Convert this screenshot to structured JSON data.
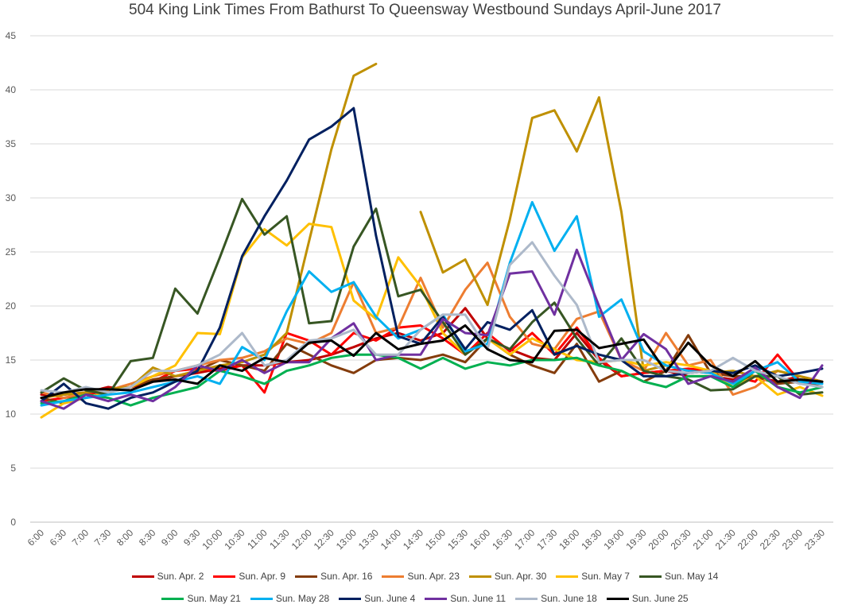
{
  "chart_data": {
    "type": "line",
    "title": "504 King Link Times From Bathurst To Queensway Westbound Sundays April-June 2017",
    "xlabel": "",
    "ylabel": "",
    "ylim": [
      0,
      45
    ],
    "yticks": [
      "0",
      "5",
      "10",
      "15",
      "20",
      "25",
      "30",
      "35",
      "40",
      "45"
    ],
    "grid": "horizontal",
    "legend_position": "bottom",
    "categories": [
      "6:00",
      "6:30",
      "7:00",
      "7:30",
      "8:00",
      "8:30",
      "9:00",
      "9:30",
      "10:00",
      "10:30",
      "11:00",
      "11:30",
      "12:00",
      "12:30",
      "13:00",
      "13:30",
      "14:00",
      "14:30",
      "15:00",
      "15:30",
      "16:00",
      "16:30",
      "17:00",
      "17:30",
      "18:00",
      "18:30",
      "19:00",
      "19:30",
      "20:00",
      "20:30",
      "21:00",
      "21:30",
      "22:00",
      "22:30",
      "23:00",
      "23:30"
    ],
    "series": [
      {
        "name": "Sun. Apr. 2",
        "color": "#c00000",
        "values": [
          11.8,
          11.8,
          12.0,
          12.5,
          12.2,
          13.0,
          13.5,
          13.8,
          14.2,
          14.5,
          14.5,
          14.8,
          15.0,
          15.5,
          16.2,
          17.0,
          17.5,
          16.8,
          17.5,
          19.8,
          17.0,
          16.0,
          15.2,
          15.0,
          17.5,
          15.0,
          13.5,
          13.8,
          14.0,
          13.5,
          13.5,
          13.2,
          13.5,
          13.0,
          13.5,
          13.0
        ]
      },
      {
        "name": "Sun. Apr. 9",
        "color": "#ff0000",
        "values": [
          11.2,
          11.5,
          11.8,
          12.2,
          12.5,
          13.0,
          14.0,
          14.2,
          14.0,
          14.5,
          12.0,
          17.5,
          16.8,
          15.5,
          17.5,
          16.8,
          18.0,
          18.2,
          17.0,
          15.5,
          17.5,
          15.8,
          17.5,
          15.5,
          18.0,
          15.2,
          13.5,
          13.8,
          14.0,
          14.2,
          14.0,
          13.5,
          13.0,
          15.5,
          13.0,
          13.0
        ]
      },
      {
        "name": "Sun. Apr. 16",
        "color": "#843c0c",
        "values": [
          11.5,
          11.0,
          11.5,
          12.0,
          12.5,
          13.2,
          13.5,
          14.0,
          15.0,
          14.5,
          14.0,
          16.5,
          15.5,
          14.5,
          13.8,
          15.0,
          15.2,
          15.0,
          15.5,
          14.8,
          17.0,
          15.5,
          14.5,
          13.8,
          16.5,
          13.0,
          14.0,
          13.0,
          14.0,
          17.3,
          13.8,
          13.5,
          13.5,
          12.8,
          13.0,
          12.5
        ]
      },
      {
        "name": "Sun. Apr. 23",
        "color": "#ed7d31",
        "values": [
          12.0,
          11.5,
          12.0,
          12.2,
          12.8,
          13.5,
          14.0,
          14.5,
          15.0,
          15.2,
          15.8,
          17.0,
          16.5,
          17.5,
          22.2,
          17.5,
          18.0,
          22.6,
          18.0,
          21.5,
          24.0,
          19.0,
          16.5,
          16.0,
          18.8,
          19.5,
          15.0,
          14.0,
          17.5,
          14.5,
          15.0,
          11.8,
          12.5,
          14.0,
          13.5,
          13.0
        ]
      },
      {
        "name": "Sun. Apr. 30",
        "color": "#bf9000",
        "values": [
          11.5,
          11.8,
          12.0,
          12.3,
          12.5,
          14.3,
          13.5,
          14.0,
          14.5,
          14.8,
          15.5,
          17.5,
          26.0,
          34.5,
          41.3,
          42.4,
          null,
          28.7,
          23.1,
          24.3,
          20.1,
          28.0,
          37.4,
          38.1,
          34.3,
          39.3,
          28.7,
          14.0,
          14.5,
          14.0,
          13.8,
          14.0,
          13.5,
          14.0,
          13.5,
          13.0
        ]
      },
      {
        "name": "Sun. May 7",
        "color": "#ffc000",
        "values": [
          9.7,
          11.0,
          11.5,
          12.0,
          12.5,
          13.5,
          14.5,
          17.5,
          17.4,
          24.5,
          27.1,
          25.6,
          27.6,
          27.3,
          20.5,
          18.8,
          24.5,
          21.8,
          17.5,
          15.5,
          17.0,
          15.5,
          17.0,
          16.0,
          15.0,
          14.8,
          15.0,
          14.5,
          14.8,
          14.5,
          14.0,
          12.5,
          13.5,
          11.8,
          12.5,
          11.7
        ]
      },
      {
        "name": "Sun. May 14",
        "color": "#375623",
        "values": [
          12.0,
          13.3,
          12.2,
          11.8,
          14.9,
          15.2,
          21.6,
          19.3,
          24.5,
          29.9,
          26.6,
          28.3,
          18.4,
          18.6,
          25.5,
          29.0,
          20.9,
          21.5,
          18.5,
          15.5,
          17.0,
          16.0,
          18.5,
          20.3,
          17.0,
          14.5,
          17.0,
          14.0,
          13.5,
          13.2,
          12.2,
          12.3,
          13.5,
          13.5,
          11.8,
          12.0
        ]
      },
      {
        "name": "Sun. May 21",
        "color": "#00b050",
        "values": [
          11.0,
          11.2,
          11.8,
          11.5,
          10.8,
          11.5,
          12.0,
          12.5,
          14.0,
          13.5,
          12.8,
          14.0,
          14.5,
          15.2,
          15.5,
          15.5,
          15.2,
          14.2,
          15.2,
          14.2,
          14.8,
          14.5,
          15.0,
          15.0,
          15.2,
          14.5,
          14.0,
          13.0,
          12.5,
          13.5,
          13.5,
          12.5,
          14.0,
          12.5,
          12.0,
          12.5
        ]
      },
      {
        "name": "Sun. May 28",
        "color": "#00b0f0",
        "values": [
          10.8,
          11.2,
          11.5,
          11.8,
          12.0,
          12.5,
          13.0,
          13.5,
          12.8,
          16.2,
          15.0,
          19.5,
          23.2,
          21.3,
          22.2,
          19.0,
          17.0,
          17.8,
          19.2,
          15.8,
          16.5,
          24.0,
          29.6,
          25.1,
          28.3,
          19.0,
          20.6,
          15.8,
          14.5,
          14.0,
          13.8,
          12.8,
          14.0,
          14.8,
          13.0,
          12.8
        ]
      },
      {
        "name": "Sun. June 4",
        "color": "#002060",
        "values": [
          11.2,
          12.8,
          11.0,
          10.5,
          11.5,
          12.0,
          13.0,
          14.0,
          18.0,
          24.6,
          28.3,
          31.6,
          35.4,
          36.6,
          38.3,
          26.5,
          17.2,
          16.5,
          19.0,
          16.0,
          18.5,
          17.8,
          19.6,
          15.5,
          16.3,
          15.5,
          15.0,
          13.5,
          13.5,
          13.8,
          14.0,
          13.8,
          14.5,
          13.5,
          13.8,
          14.2
        ]
      },
      {
        "name": "Sun. June 11",
        "color": "#7030a0",
        "values": [
          11.2,
          10.5,
          11.8,
          11.2,
          11.8,
          11.2,
          12.5,
          14.5,
          14.0,
          15.0,
          13.8,
          14.8,
          14.8,
          17.0,
          18.4,
          15.0,
          15.5,
          15.5,
          18.8,
          17.5,
          17.3,
          23.0,
          23.2,
          19.2,
          25.2,
          20.0,
          15.0,
          17.4,
          16.0,
          12.8,
          13.5,
          13.0,
          14.3,
          12.5,
          11.5,
          14.5
        ]
      },
      {
        "name": "Sun. June 18",
        "color": "#adb9ca",
        "values": [
          12.2,
          12.0,
          12.5,
          12.0,
          12.5,
          14.0,
          14.0,
          14.5,
          15.5,
          17.5,
          14.5,
          15.0,
          16.8,
          17.0,
          17.8,
          15.5,
          15.5,
          17.8,
          19.2,
          19.2,
          16.0,
          23.8,
          25.9,
          22.8,
          20.1,
          14.8,
          15.0,
          15.0,
          14.0,
          13.8,
          14.0,
          15.2,
          14.0,
          13.5,
          12.8,
          12.5
        ]
      },
      {
        "name": "Sun. June 25",
        "color": "#000000",
        "values": [
          11.5,
          12.0,
          12.3,
          12.3,
          12.2,
          13.0,
          13.2,
          12.8,
          14.5,
          14.0,
          15.2,
          14.8,
          16.6,
          16.8,
          15.4,
          17.5,
          16.0,
          16.5,
          16.8,
          18.2,
          16.0,
          15.0,
          14.8,
          17.7,
          17.8,
          16.1,
          16.5,
          16.9,
          13.9,
          16.6,
          14.5,
          13.5,
          14.9,
          13.0,
          13.2,
          13.0
        ]
      }
    ]
  }
}
